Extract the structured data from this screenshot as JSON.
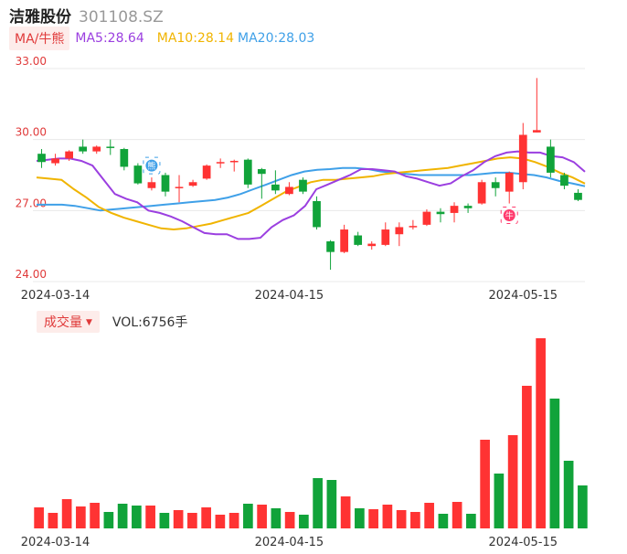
{
  "header": {
    "name": "洁雅股份",
    "code": "301108.SZ"
  },
  "ma": {
    "type": "MA/牛熊",
    "ma5": "MA5:28.64",
    "ma10": "MA10:28.14",
    "ma20": "MA20:28.03"
  },
  "volume": {
    "type": "成交量",
    "value": "VOL:6756手"
  },
  "colors": {
    "up": "#ff3333",
    "down": "#11a33a",
    "ma5": "#9b3fe0",
    "ma10": "#f0b400",
    "ma20": "#3fa0e8"
  },
  "chart_data": {
    "type": "candlestick",
    "y_ticks": [
      "33.00",
      "30.00",
      "27.00",
      "24.00"
    ],
    "ylim": [
      24,
      33
    ],
    "x_ticks": [
      {
        "label": "2024-03-14",
        "index": 1
      },
      {
        "label": "2024-04-15",
        "index": 18
      },
      {
        "label": "2024-04-15",
        "index": 18
      },
      {
        "label": "2024-05-15",
        "index": 35
      }
    ],
    "candles": [
      {
        "o": 29.4,
        "c": 29.05,
        "h": 29.6,
        "l": 28.8
      },
      {
        "o": 29.0,
        "c": 29.2,
        "h": 29.4,
        "l": 28.9
      },
      {
        "o": 29.2,
        "c": 29.5,
        "h": 29.55,
        "l": 29.1
      },
      {
        "o": 29.7,
        "c": 29.5,
        "h": 30.0,
        "l": 29.4
      },
      {
        "o": 29.5,
        "c": 29.7,
        "h": 29.75,
        "l": 29.4
      },
      {
        "o": 29.7,
        "c": 29.65,
        "h": 30.0,
        "l": 29.35
      },
      {
        "o": 29.6,
        "c": 28.85,
        "h": 29.65,
        "l": 28.7
      },
      {
        "o": 28.9,
        "c": 28.15,
        "h": 29.0,
        "l": 28.1
      },
      {
        "o": 27.95,
        "c": 28.2,
        "h": 28.4,
        "l": 27.85
      },
      {
        "o": 28.5,
        "c": 27.8,
        "h": 28.6,
        "l": 27.6
      },
      {
        "o": 27.95,
        "c": 28.0,
        "h": 28.5,
        "l": 27.35
      },
      {
        "o": 28.05,
        "c": 28.2,
        "h": 28.3,
        "l": 28.0
      },
      {
        "o": 28.35,
        "c": 28.9,
        "h": 28.95,
        "l": 28.3
      },
      {
        "o": 29.0,
        "c": 29.05,
        "h": 29.2,
        "l": 28.8
      },
      {
        "o": 29.05,
        "c": 29.1,
        "h": 29.15,
        "l": 28.65
      },
      {
        "o": 29.15,
        "c": 28.1,
        "h": 29.2,
        "l": 27.95
      },
      {
        "o": 28.75,
        "c": 28.55,
        "h": 28.8,
        "l": 27.5
      },
      {
        "o": 28.1,
        "c": 27.85,
        "h": 28.7,
        "l": 27.7
      },
      {
        "o": 27.7,
        "c": 28.0,
        "h": 28.2,
        "l": 27.65
      },
      {
        "o": 28.3,
        "c": 27.8,
        "h": 28.4,
        "l": 27.7
      },
      {
        "o": 27.4,
        "c": 26.3,
        "h": 27.6,
        "l": 26.2
      },
      {
        "o": 25.7,
        "c": 25.25,
        "h": 25.75,
        "l": 24.5
      },
      {
        "o": 25.25,
        "c": 26.2,
        "h": 26.4,
        "l": 25.2
      },
      {
        "o": 25.95,
        "c": 25.55,
        "h": 26.1,
        "l": 25.5
      },
      {
        "o": 25.5,
        "c": 25.6,
        "h": 25.7,
        "l": 25.35
      },
      {
        "o": 25.55,
        "c": 26.2,
        "h": 26.5,
        "l": 25.5
      },
      {
        "o": 26.0,
        "c": 26.3,
        "h": 26.5,
        "l": 25.5
      },
      {
        "o": 26.3,
        "c": 26.35,
        "h": 26.6,
        "l": 26.2
      },
      {
        "o": 26.4,
        "c": 26.95,
        "h": 27.05,
        "l": 26.35
      },
      {
        "o": 26.95,
        "c": 26.85,
        "h": 27.1,
        "l": 26.5
      },
      {
        "o": 26.9,
        "c": 27.2,
        "h": 27.35,
        "l": 26.5
      },
      {
        "o": 27.2,
        "c": 27.1,
        "h": 27.3,
        "l": 26.9
      },
      {
        "o": 27.3,
        "c": 28.2,
        "h": 28.3,
        "l": 27.25
      },
      {
        "o": 28.2,
        "c": 27.95,
        "h": 28.4,
        "l": 27.6
      },
      {
        "o": 27.8,
        "c": 28.6,
        "h": 28.65,
        "l": 27.3
      },
      {
        "o": 28.2,
        "c": 30.2,
        "h": 30.7,
        "l": 27.9
      },
      {
        "o": 30.3,
        "c": 30.4,
        "h": 32.6,
        "l": 30.3
      },
      {
        "o": 29.7,
        "c": 28.6,
        "h": 30.0,
        "l": 28.4
      },
      {
        "o": 28.5,
        "c": 28.05,
        "h": 28.6,
        "l": 27.9
      },
      {
        "o": 27.75,
        "c": 27.45,
        "h": 27.9,
        "l": 27.4
      }
    ],
    "ma5": [
      29.1,
      29.15,
      29.2,
      29.2,
      29.1,
      28.9,
      28.3,
      27.7,
      27.5,
      27.35,
      27.0,
      26.9,
      26.75,
      26.55,
      26.3,
      26.05,
      26.0,
      26.0,
      25.8,
      25.8,
      25.85,
      26.3,
      26.6,
      26.8,
      27.2,
      27.9,
      28.1,
      28.3,
      28.5,
      28.75,
      28.75,
      28.7,
      28.65,
      28.45,
      28.35,
      28.2,
      28.05,
      28.15,
      28.45,
      28.7,
      29.05,
      29.3,
      29.45,
      29.5,
      29.45,
      29.45,
      29.3,
      29.25,
      29.05,
      28.64
    ],
    "ma10": [
      28.4,
      28.35,
      28.3,
      27.9,
      27.55,
      27.15,
      26.9,
      26.7,
      26.55,
      26.4,
      26.25,
      26.2,
      26.25,
      26.35,
      26.45,
      26.6,
      26.75,
      26.9,
      27.2,
      27.5,
      27.8,
      28.0,
      28.2,
      28.3,
      28.3,
      28.35,
      28.4,
      28.45,
      28.55,
      28.6,
      28.65,
      28.7,
      28.75,
      28.8,
      28.9,
      29.0,
      29.1,
      29.2,
      29.25,
      29.2,
      29.05,
      28.85,
      28.6,
      28.4,
      28.14
    ],
    "ma20": [
      27.25,
      27.25,
      27.25,
      27.2,
      27.1,
      27.0,
      27.05,
      27.1,
      27.15,
      27.2,
      27.25,
      27.3,
      27.35,
      27.4,
      27.45,
      27.55,
      27.7,
      27.9,
      28.1,
      28.3,
      28.5,
      28.65,
      28.72,
      28.75,
      28.8,
      28.8,
      28.75,
      28.65,
      28.6,
      28.55,
      28.5,
      28.5,
      28.5,
      28.5,
      28.5,
      28.55,
      28.6,
      28.6,
      28.55,
      28.5,
      28.4,
      28.25,
      28.15,
      28.03
    ],
    "volumes": [
      {
        "v": 23,
        "up": true
      },
      {
        "v": 17,
        "up": true
      },
      {
        "v": 32,
        "up": true
      },
      {
        "v": 24,
        "up": true
      },
      {
        "v": 28,
        "up": true
      },
      {
        "v": 18,
        "up": false
      },
      {
        "v": 27,
        "up": false
      },
      {
        "v": 25,
        "up": false
      },
      {
        "v": 25,
        "up": true
      },
      {
        "v": 17,
        "up": false
      },
      {
        "v": 20,
        "up": true
      },
      {
        "v": 17,
        "up": true
      },
      {
        "v": 23,
        "up": true
      },
      {
        "v": 15,
        "up": true
      },
      {
        "v": 17,
        "up": true
      },
      {
        "v": 27,
        "up": false
      },
      {
        "v": 26,
        "up": true
      },
      {
        "v": 22,
        "up": false
      },
      {
        "v": 18,
        "up": true
      },
      {
        "v": 15,
        "up": false
      },
      {
        "v": 55,
        "up": false
      },
      {
        "v": 53,
        "up": false
      },
      {
        "v": 35,
        "up": true
      },
      {
        "v": 22,
        "up": false
      },
      {
        "v": 21,
        "up": true
      },
      {
        "v": 26,
        "up": true
      },
      {
        "v": 20,
        "up": true
      },
      {
        "v": 18,
        "up": true
      },
      {
        "v": 28,
        "up": true
      },
      {
        "v": 16,
        "up": false
      },
      {
        "v": 29,
        "up": true
      },
      {
        "v": 16,
        "up": false
      },
      {
        "v": 97,
        "up": true
      },
      {
        "v": 60,
        "up": false
      },
      {
        "v": 102,
        "up": true
      },
      {
        "v": 156,
        "up": true
      },
      {
        "v": 208,
        "up": true
      },
      {
        "v": 142,
        "up": false
      },
      {
        "v": 74,
        "up": false
      },
      {
        "v": 47,
        "up": false
      }
    ],
    "markers": [
      {
        "label": "熊",
        "index": 8,
        "price": 28.9
      },
      {
        "label": "牛",
        "index": 34,
        "price": 26.8
      }
    ]
  }
}
